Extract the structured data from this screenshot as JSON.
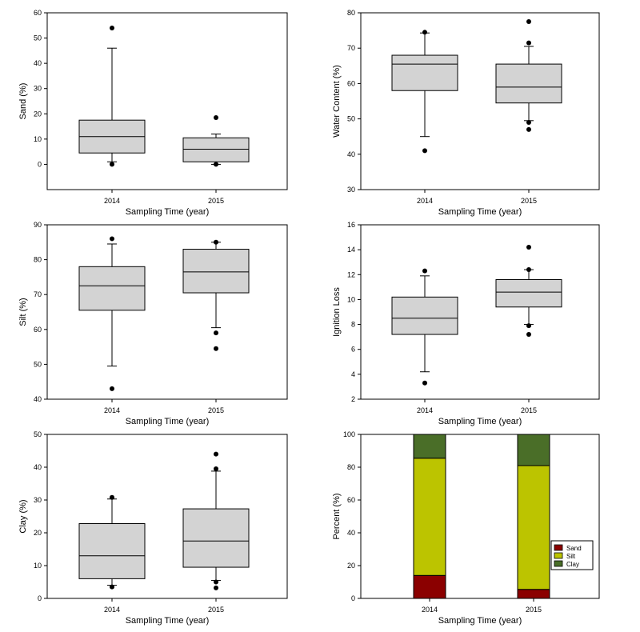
{
  "colors": {
    "box_fill": "#d3d3d3",
    "sand": "#8b0000",
    "silt": "#bcc400",
    "clay": "#4a6e28"
  },
  "chart_data": [
    {
      "id": "sand",
      "type": "box",
      "xlabel": "Sampling Time (year)",
      "ylabel": "Sand (%)",
      "ylim": [
        -10,
        60
      ],
      "yticks": [
        0,
        10,
        20,
        30,
        40,
        50,
        60
      ],
      "categories": [
        "2014",
        "2015"
      ],
      "boxes": [
        {
          "q1": 4.5,
          "median": 11,
          "q3": 17.5,
          "whisker_low": 1,
          "whisker_high": 46,
          "outliers": [
            0,
            54
          ]
        },
        {
          "q1": 1,
          "median": 6,
          "q3": 10.5,
          "whisker_low": 0,
          "whisker_high": 12,
          "outliers": [
            0,
            18.5
          ]
        }
      ]
    },
    {
      "id": "water",
      "type": "box",
      "xlabel": "Sampling Time (year)",
      "ylabel": "Water Content (%)",
      "ylim": [
        30,
        80
      ],
      "yticks": [
        30,
        40,
        50,
        60,
        70,
        80
      ],
      "categories": [
        "2014",
        "2015"
      ],
      "boxes": [
        {
          "q1": 58,
          "median": 65.5,
          "q3": 68,
          "whisker_low": 45,
          "whisker_high": 74.3,
          "outliers": [
            41,
            74.5
          ]
        },
        {
          "q1": 54.5,
          "median": 59,
          "q3": 65.5,
          "whisker_low": 49.5,
          "whisker_high": 70.5,
          "outliers": [
            47,
            49,
            71.5,
            77.5
          ]
        }
      ]
    },
    {
      "id": "silt",
      "type": "box",
      "xlabel": "Sampling Time (year)",
      "ylabel": "Silt (%)",
      "ylim": [
        40,
        90
      ],
      "yticks": [
        40,
        50,
        60,
        70,
        80,
        90
      ],
      "categories": [
        "2014",
        "2015"
      ],
      "boxes": [
        {
          "q1": 65.5,
          "median": 72.5,
          "q3": 78,
          "whisker_low": 49.5,
          "whisker_high": 84.5,
          "outliers": [
            43,
            86
          ]
        },
        {
          "q1": 70.5,
          "median": 76.5,
          "q3": 83,
          "whisker_low": 60.5,
          "whisker_high": 85,
          "outliers": [
            54.5,
            59,
            85
          ]
        }
      ]
    },
    {
      "id": "ignition",
      "type": "box",
      "xlabel": "Sampling Time (year)",
      "ylabel": "Ignition Loss",
      "ylim": [
        2,
        16
      ],
      "yticks": [
        2,
        4,
        6,
        8,
        10,
        12,
        14,
        16
      ],
      "categories": [
        "2014",
        "2015"
      ],
      "boxes": [
        {
          "q1": 7.2,
          "median": 8.5,
          "q3": 10.2,
          "whisker_low": 4.2,
          "whisker_high": 11.9,
          "outliers": [
            3.3,
            12.3
          ]
        },
        {
          "q1": 9.4,
          "median": 10.6,
          "q3": 11.6,
          "whisker_low": 8,
          "whisker_high": 12.4,
          "outliers": [
            7.2,
            7.9,
            12.4,
            14.2
          ]
        }
      ]
    },
    {
      "id": "clay",
      "type": "box",
      "xlabel": "Sampling Time (year)",
      "ylabel": "Clay (%)",
      "ylim": [
        0,
        50
      ],
      "yticks": [
        0,
        10,
        20,
        30,
        40,
        50
      ],
      "categories": [
        "2014",
        "2015"
      ],
      "boxes": [
        {
          "q1": 6,
          "median": 13,
          "q3": 22.8,
          "whisker_low": 4,
          "whisker_high": 30.3,
          "outliers": [
            3.5,
            30.8
          ]
        },
        {
          "q1": 9.5,
          "median": 17.5,
          "q3": 27.3,
          "whisker_low": 5.5,
          "whisker_high": 38.8,
          "outliers": [
            3.2,
            5,
            39.5,
            44
          ]
        }
      ]
    },
    {
      "id": "composition",
      "type": "stacked-bar",
      "xlabel": "Sampling Time (year)",
      "ylabel": "Percent (%)",
      "ylim": [
        0,
        100
      ],
      "yticks": [
        0,
        20,
        40,
        60,
        80,
        100
      ],
      "categories": [
        "2014",
        "2015"
      ],
      "series": [
        {
          "name": "Sand",
          "values": [
            14,
            5.5
          ]
        },
        {
          "name": "Silt",
          "values": [
            71.5,
            75.5
          ]
        },
        {
          "name": "Clay",
          "values": [
            14.5,
            19
          ]
        }
      ],
      "legend": "bottom-right"
    }
  ]
}
